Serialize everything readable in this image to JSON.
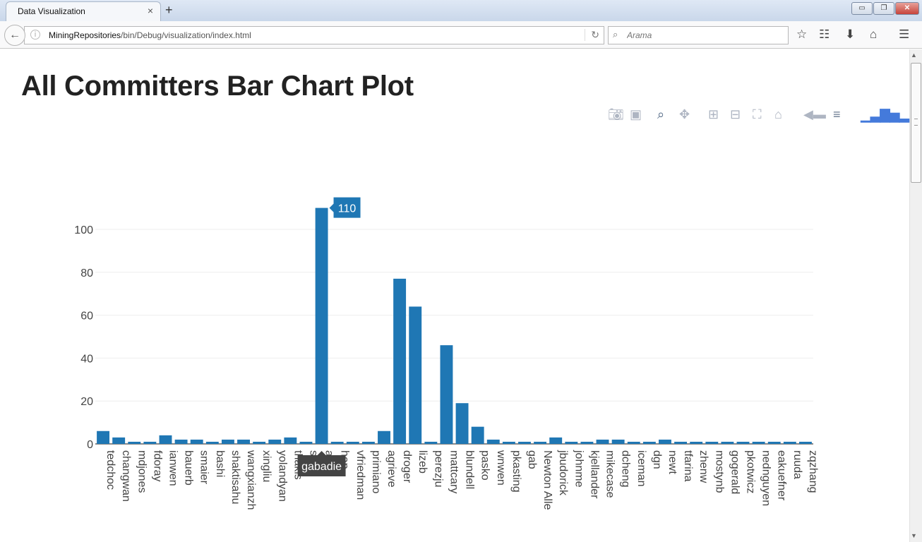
{
  "browser": {
    "tab_title": "Data Visualization",
    "tab_close": "×",
    "new_tab": "+",
    "url_host": "MiningRepositories",
    "url_path": "/bin/Debug/visualization/index.html",
    "search_placeholder": "Arama",
    "window_minimize": "▭",
    "window_restore": "❐",
    "window_close": "✕"
  },
  "page": {
    "title": "All Committers Bar Chart Plot"
  },
  "modebar": {
    "icons": [
      "camera-icon",
      "save-icon",
      "zoom-icon",
      "pan-icon",
      "zoom-in-icon",
      "zoom-out-icon",
      "autoscale-icon",
      "reset-axes-icon",
      "hover-closest-icon",
      "hover-compare-icon",
      "plotly-logo-icon"
    ]
  },
  "chart_data": {
    "type": "bar",
    "title": "",
    "xlabel": "",
    "ylabel": "",
    "ylim": [
      0,
      110
    ],
    "yticks": [
      0,
      20,
      40,
      60,
      80,
      100
    ],
    "bar_color": "#1f77b4",
    "categories": [
      "tedchoc",
      "changwan",
      "mdjones",
      "fdoray",
      "ianwen",
      "bauerb",
      "smaier",
      "bashi",
      "shaktisahu",
      "wangxianzh",
      "xingliu",
      "yolandyan",
      "thakis",
      "stig",
      "gabadie",
      "hap",
      "vfriedman",
      "primiano",
      "agrieve",
      "droger",
      "lizeb",
      "perezju",
      "mattcary",
      "blundell",
      "pasko",
      "wnwen",
      "pkasting",
      "gab",
      "Newton Alle",
      "jbudorick",
      "johnme",
      "kjellander",
      "mikecase",
      "dcheng",
      "iceman",
      "dgn",
      "newt",
      "tfarina",
      "zhenw",
      "mostynb",
      "gogerald",
      "pkotwicz",
      "nednguyen",
      "eakuefner",
      "ruuda",
      "zqzhang"
    ],
    "values": [
      6,
      3,
      1,
      1,
      4,
      2,
      2,
      1,
      2,
      2,
      1,
      2,
      3,
      1,
      110,
      1,
      1,
      1,
      6,
      77,
      64,
      1,
      46,
      19,
      8,
      2,
      1,
      1,
      1,
      3,
      1,
      1,
      2,
      2,
      1,
      1,
      2,
      1,
      1,
      1,
      1,
      1,
      1,
      1,
      1,
      1
    ],
    "tick_labels": [
      "tedchoc",
      "changwan",
      "mdjones",
      "fdoray",
      "ianwen",
      "bauerb",
      "smaier",
      "bashi",
      "shaktisahu",
      "wangxianzh",
      "xingliu",
      "yolandyan",
      "thakis",
      "stig",
      "adie",
      "hap",
      "vfriedman",
      "primiano",
      "agrieve",
      "droger",
      "lizeb",
      "perezju",
      "mattcary",
      "blundell",
      "pasko",
      "wnwen",
      "pkasting",
      "gab",
      "Newton Alle",
      "jbudorick",
      "johnme",
      "kjellander",
      "mikecase",
      "dcheng",
      "iceman",
      "dgn",
      "newt",
      "tfarina",
      "zhenw",
      "mostynb",
      "gogerald",
      "pkotwicz",
      "nednguyen",
      "eakuefner",
      "ruuda",
      "zqzhang"
    ],
    "hover": {
      "category": "gabadie",
      "value": "110"
    }
  }
}
